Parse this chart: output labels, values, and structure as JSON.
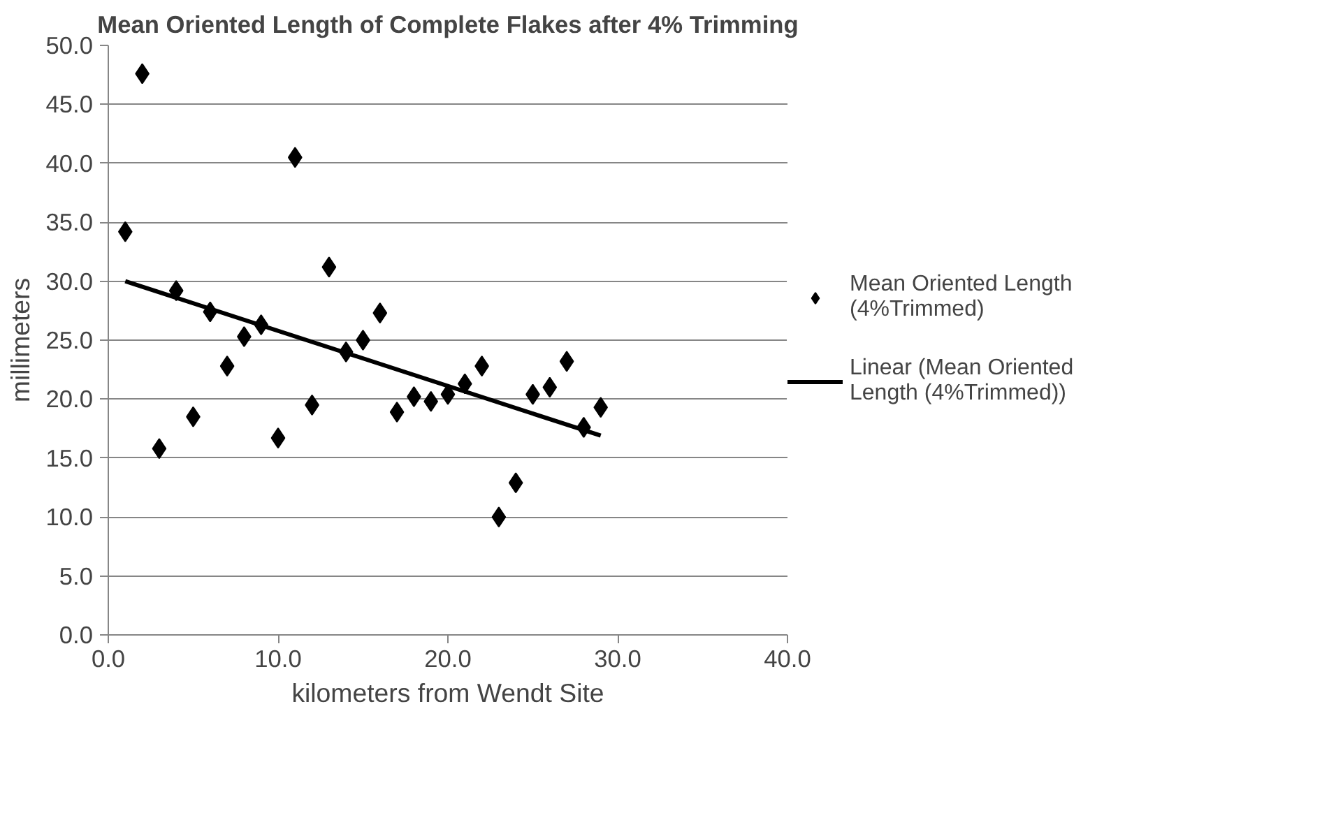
{
  "chart_data": {
    "type": "scatter",
    "title": "Mean Oriented Length of Complete Flakes after 4% Trimming",
    "xlabel": "kilometers from Wendt Site",
    "ylabel": "millimeters",
    "xlim": [
      0,
      40
    ],
    "xticks": [
      {
        "value": 0,
        "label": "0.0"
      },
      {
        "value": 10,
        "label": "10.0"
      },
      {
        "value": 20,
        "label": "20.0"
      },
      {
        "value": 30,
        "label": "30.0"
      },
      {
        "value": 40,
        "label": "40.0"
      }
    ],
    "ylim": [
      0,
      50
    ],
    "yticks": [
      {
        "value": 0,
        "label": "0.0"
      },
      {
        "value": 5,
        "label": "5.0"
      },
      {
        "value": 10,
        "label": "10.0"
      },
      {
        "value": 15,
        "label": "15.0"
      },
      {
        "value": 20,
        "label": "20.0"
      },
      {
        "value": 25,
        "label": "25.0"
      },
      {
        "value": 30,
        "label": "30.0"
      },
      {
        "value": 35,
        "label": "35.0"
      },
      {
        "value": 40,
        "label": "40.0"
      },
      {
        "value": 45,
        "label": "45.0"
      },
      {
        "value": 50,
        "label": "50.0"
      }
    ],
    "grid": "y",
    "legend": "right",
    "series": [
      {
        "name": "Mean Oriented Length (4%Trimmed)",
        "marker": "diamond",
        "color": "#000000",
        "x": [
          1,
          2,
          3,
          4,
          5,
          6,
          7,
          8,
          9,
          10,
          11,
          12,
          13,
          14,
          15,
          16,
          17,
          18,
          19,
          20,
          21,
          22,
          23,
          24,
          25,
          26,
          27,
          28,
          29
        ],
        "values": [
          34.2,
          47.6,
          15.8,
          29.2,
          18.5,
          27.4,
          22.8,
          25.3,
          26.3,
          16.7,
          40.5,
          19.5,
          31.2,
          24.0,
          25.0,
          27.3,
          18.9,
          20.2,
          19.8,
          20.4,
          21.3,
          22.8,
          10.0,
          12.9,
          20.4,
          21.0,
          23.2,
          17.6,
          19.3
        ]
      },
      {
        "name": "Linear (Mean Oriented Length (4%Trimmed))",
        "type": "line",
        "color": "#000000",
        "x": [
          1,
          29
        ],
        "values": [
          30.0,
          16.9
        ]
      }
    ]
  }
}
